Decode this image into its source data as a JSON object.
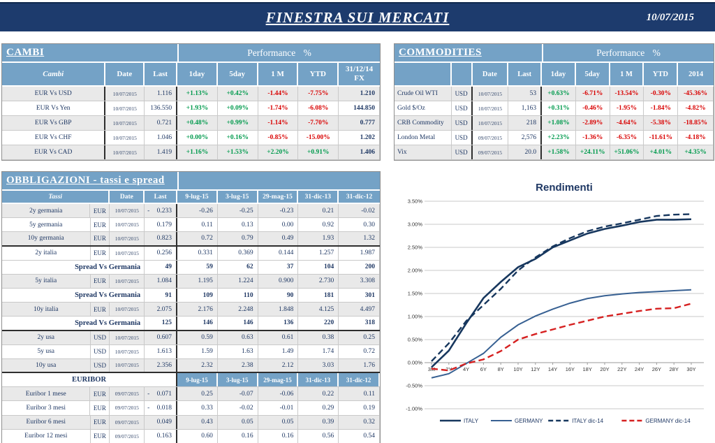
{
  "header": {
    "title": "FINESTRA SUI MERCATI",
    "date": "10/07/2015"
  },
  "colors": {
    "navy_bar": "#1d3b6d",
    "table_blue": "#74a2c6",
    "text_navy": "#1f3864",
    "positive_green": "#009a4d",
    "negative_red": "#d90000"
  },
  "cambi": {
    "title": "CAMBI",
    "performance_label": "Performance %",
    "columns": [
      "Cambi",
      "Date",
      "Last",
      "1day",
      "5day",
      "1 M",
      "YTD",
      "31/12/14\nFX"
    ],
    "rows": [
      {
        "name": "EUR Vs USD",
        "date": "10/07/2015",
        "last": "1.116",
        "perf": [
          "+1.13%",
          "+0.42%",
          "-1.44%",
          "-7.75%"
        ],
        "fx": "1.210"
      },
      {
        "name": "EUR Vs Yen",
        "date": "10/07/2015",
        "last": "136.550",
        "perf": [
          "+1.93%",
          "+0.09%",
          "-1.74%",
          "-6.08%"
        ],
        "fx": "144.850"
      },
      {
        "name": "EUR Vs GBP",
        "date": "10/07/2015",
        "last": "0.721",
        "perf": [
          "+0.48%",
          "+0.99%",
          "-1.14%",
          "-7.70%"
        ],
        "fx": "0.777"
      },
      {
        "name": "EUR Vs CHF",
        "date": "10/07/2015",
        "last": "1.046",
        "perf": [
          "+0.00%",
          "+0.16%",
          "-0.85%",
          "-15.00%"
        ],
        "fx": "1.202"
      },
      {
        "name": "EUR Vs CAD",
        "date": "10/07/2015",
        "last": "1.419",
        "perf": [
          "+1.16%",
          "+1.53%",
          "+2.20%",
          "+0.91%"
        ],
        "fx": "1.406"
      }
    ]
  },
  "commodities": {
    "title": "COMMODITIES",
    "performance_label": "Performance %",
    "columns": [
      "Date",
      "Last",
      "1day",
      "5day",
      "1 M",
      "YTD",
      "2014"
    ],
    "rows": [
      {
        "name": "Crude Oil WTI",
        "cur": "USD",
        "date": "10/07/2015",
        "last": "53",
        "perf": [
          "+0.63%",
          "-6.71%",
          "-13.54%",
          "-0.30%",
          "-45.36%"
        ]
      },
      {
        "name": "Gold $/Oz",
        "cur": "USD",
        "date": "10/07/2015",
        "last": "1,163",
        "perf": [
          "+0.31%",
          "-0.46%",
          "-1.95%",
          "-1.84%",
          "-4.82%"
        ]
      },
      {
        "name": "CRB Commodity",
        "cur": "USD",
        "date": "10/07/2015",
        "last": "218",
        "perf": [
          "+1.08%",
          "-2.89%",
          "-4.64%",
          "-5.38%",
          "-18.85%"
        ]
      },
      {
        "name": "London Metal",
        "cur": "USD",
        "date": "09/07/2015",
        "last": "2,576",
        "perf": [
          "+2.23%",
          "-1.36%",
          "-6.35%",
          "-11.61%",
          "-4.18%"
        ]
      },
      {
        "name": "Vix",
        "cur": "USD",
        "date": "09/07/2015",
        "last": "20.0",
        "perf": [
          "+1.58%",
          "+24.11%",
          "+51.06%",
          "+4.01%",
          "+4.35%"
        ]
      }
    ]
  },
  "obbligazioni": {
    "title": "OBBLIGAZIONI - tassi e spread",
    "columns": [
      "Tassi",
      "Date",
      "Last",
      "9-lug-15",
      "3-lug-15",
      "29-mag-15",
      "31-dic-13",
      "31-dic-12"
    ],
    "euribor_label": "EURIBOR",
    "euribor_columns": [
      "9-lug-15",
      "3-lug-15",
      "29-mag-15",
      "31-dic-13",
      "31-dic-12"
    ],
    "spread_label": "Spread Vs Germania",
    "rows": [
      {
        "type": "data",
        "name": "2y germania",
        "cur": "EUR",
        "date": "10/07/2015",
        "last": "0.233",
        "last_neg": true,
        "vals": [
          "-0.26",
          "-0.25",
          "-0.23",
          "0.21",
          "-0.02"
        ],
        "shade": true
      },
      {
        "type": "data",
        "name": "5y germania",
        "cur": "EUR",
        "date": "10/07/2015",
        "last": "0.179",
        "last_neg": false,
        "vals": [
          "0.11",
          "0.13",
          "0.00",
          "0.92",
          "0.30"
        ],
        "shade": false
      },
      {
        "type": "data",
        "name": "10y germania",
        "cur": "EUR",
        "date": "10/07/2015",
        "last": "0.823",
        "last_neg": false,
        "vals": [
          "0.72",
          "0.79",
          "0.49",
          "1.93",
          "1.32"
        ],
        "shade": true,
        "section_end": true
      },
      {
        "type": "data",
        "name": "2y italia",
        "cur": "EUR",
        "date": "10/07/2015",
        "last": "0.256",
        "last_neg": false,
        "vals": [
          "0.331",
          "0.369",
          "0.144",
          "1.257",
          "1.987"
        ],
        "shade": false
      },
      {
        "type": "spread",
        "last": "49",
        "vals": [
          "59",
          "62",
          "37",
          "104",
          "200"
        ]
      },
      {
        "type": "data",
        "name": "5y italia",
        "cur": "EUR",
        "date": "10/07/2015",
        "last": "1.084",
        "last_neg": false,
        "vals": [
          "1.195",
          "1.224",
          "0.900",
          "2.730",
          "3.308"
        ],
        "shade": true
      },
      {
        "type": "spread",
        "last": "91",
        "vals": [
          "109",
          "110",
          "90",
          "181",
          "301"
        ]
      },
      {
        "type": "data",
        "name": "10y italia",
        "cur": "EUR",
        "date": "10/07/2015",
        "last": "2.075",
        "last_neg": false,
        "vals": [
          "2.176",
          "2.248",
          "1.848",
          "4.125",
          "4.497"
        ],
        "shade": true
      },
      {
        "type": "spread",
        "last": "125",
        "vals": [
          "146",
          "146",
          "136",
          "220",
          "318"
        ],
        "section_end": true
      },
      {
        "type": "data",
        "name": "2y usa",
        "cur": "USD",
        "date": "10/07/2015",
        "last": "0.607",
        "last_neg": false,
        "vals": [
          "0.59",
          "0.63",
          "0.61",
          "0.38",
          "0.25"
        ],
        "shade": true
      },
      {
        "type": "data",
        "name": "5y usa",
        "cur": "USD",
        "date": "10/07/2015",
        "last": "1.613",
        "last_neg": false,
        "vals": [
          "1.59",
          "1.63",
          "1.49",
          "1.74",
          "0.72"
        ],
        "shade": false
      },
      {
        "type": "data",
        "name": "10y usa",
        "cur": "USD",
        "date": "10/07/2015",
        "last": "2.356",
        "last_neg": false,
        "vals": [
          "2.32",
          "2.38",
          "2.12",
          "3.03",
          "1.76"
        ],
        "shade": true,
        "section_end": true
      },
      {
        "type": "subheader"
      },
      {
        "type": "data",
        "name": "Euribor 1 mese",
        "cur": "EUR",
        "date": "09/07/2015",
        "last": "0.071",
        "last_neg": true,
        "vals": [
          "0.25",
          "-0.07",
          "-0.06",
          "0.22",
          "0.11"
        ],
        "shade": true
      },
      {
        "type": "data",
        "name": "Euribor 3 mesi",
        "cur": "EUR",
        "date": "09/07/2015",
        "last": "0.018",
        "last_neg": true,
        "vals": [
          "0.33",
          "-0.02",
          "-0.01",
          "0.29",
          "0.19"
        ],
        "shade": false
      },
      {
        "type": "data",
        "name": "Euribor 6 mesi",
        "cur": "EUR",
        "date": "09/07/2015",
        "last": "0.049",
        "last_neg": false,
        "vals": [
          "0.43",
          "0.05",
          "0.05",
          "0.39",
          "0.32"
        ],
        "shade": true
      },
      {
        "type": "data",
        "name": "Euribor 12 mesi",
        "cur": "EUR",
        "date": "09/07/2015",
        "last": "0.163",
        "last_neg": false,
        "vals": [
          "0.60",
          "0.16",
          "0.16",
          "0.56",
          "0.54"
        ],
        "shade": false
      }
    ]
  },
  "chart_data": {
    "type": "line",
    "title": "Rendimenti",
    "categories": [
      "3M",
      "2Y",
      "4Y",
      "6Y",
      "8Y",
      "10Y",
      "12Y",
      "14Y",
      "16Y",
      "18Y",
      "20Y",
      "22Y",
      "24Y",
      "26Y",
      "28Y",
      "30Y"
    ],
    "y_ticks": [
      "3.50%",
      "3.00%",
      "2.50%",
      "2.00%",
      "1.50%",
      "1.00%",
      "0.50%",
      "0.00%",
      "-0.50%",
      "-1.00%"
    ],
    "ylim": [
      -1.0,
      3.5
    ],
    "grid": true,
    "legend_position": "bottom",
    "series": [
      {
        "name": "ITALY",
        "color": "#17375e",
        "dash": "",
        "width": 2.6,
        "values": [
          -0.1,
          0.26,
          0.85,
          1.4,
          1.75,
          2.07,
          2.25,
          2.5,
          2.65,
          2.8,
          2.9,
          2.97,
          3.05,
          3.1,
          3.1,
          3.11
        ]
      },
      {
        "name": "GERMANY",
        "color": "#376092",
        "dash": "",
        "width": 2.0,
        "values": [
          -0.33,
          -0.24,
          -0.02,
          0.2,
          0.55,
          0.82,
          1.01,
          1.16,
          1.29,
          1.39,
          1.45,
          1.49,
          1.52,
          1.54,
          1.56,
          1.58
        ]
      },
      {
        "name": "ITALY dic-14",
        "color": "#17375e",
        "dash": "9 5",
        "width": 2.4,
        "values": [
          0.03,
          0.42,
          0.9,
          1.25,
          1.6,
          2.0,
          2.28,
          2.52,
          2.7,
          2.85,
          2.95,
          3.02,
          3.1,
          3.18,
          3.21,
          3.22
        ]
      },
      {
        "name": "GERMANY dic-14",
        "color": "#d62020",
        "dash": "9 5",
        "width": 2.4,
        "values": [
          -0.13,
          -0.17,
          -0.02,
          0.07,
          0.25,
          0.5,
          0.62,
          0.72,
          0.82,
          0.91,
          1.0,
          1.06,
          1.12,
          1.17,
          1.18,
          1.28
        ]
      }
    ]
  }
}
